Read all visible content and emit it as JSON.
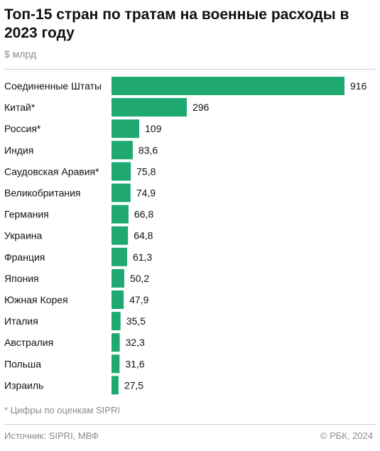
{
  "header": {
    "title": "Топ-15 стран по тратам на военные расходы в 2023 году",
    "unit": "$ млрд"
  },
  "footer": {
    "footnote": "* Цифры по оценкам SIPRI",
    "source": "Источник: SIPRI, МВФ",
    "copyright": "© РБК, 2024"
  },
  "colors": {
    "bar": "#1fa971"
  },
  "chart_data": {
    "type": "bar",
    "orientation": "horizontal",
    "categories": [
      "Соединенные Штаты",
      "Китай*",
      "Россия*",
      "Индия",
      "Саудовская Аравия*",
      "Великобритания",
      "Германия",
      "Украина",
      "Франция",
      "Япония",
      "Южная Корея",
      "Италия",
      "Австралия",
      "Польша",
      "Израиль"
    ],
    "values": [
      916,
      296,
      109,
      83.6,
      75.8,
      74.9,
      66.8,
      64.8,
      61.3,
      50.2,
      47.9,
      35.5,
      32.3,
      31.6,
      27.5
    ],
    "value_labels": [
      "916",
      "296",
      "109",
      "83,6",
      "75,8",
      "74,9",
      "66,8",
      "64,8",
      "61,3",
      "50,2",
      "47,9",
      "35,5",
      "32,3",
      "31,6",
      "27,5"
    ],
    "xlim": [
      0,
      916
    ],
    "grid": false,
    "legend": "none"
  }
}
